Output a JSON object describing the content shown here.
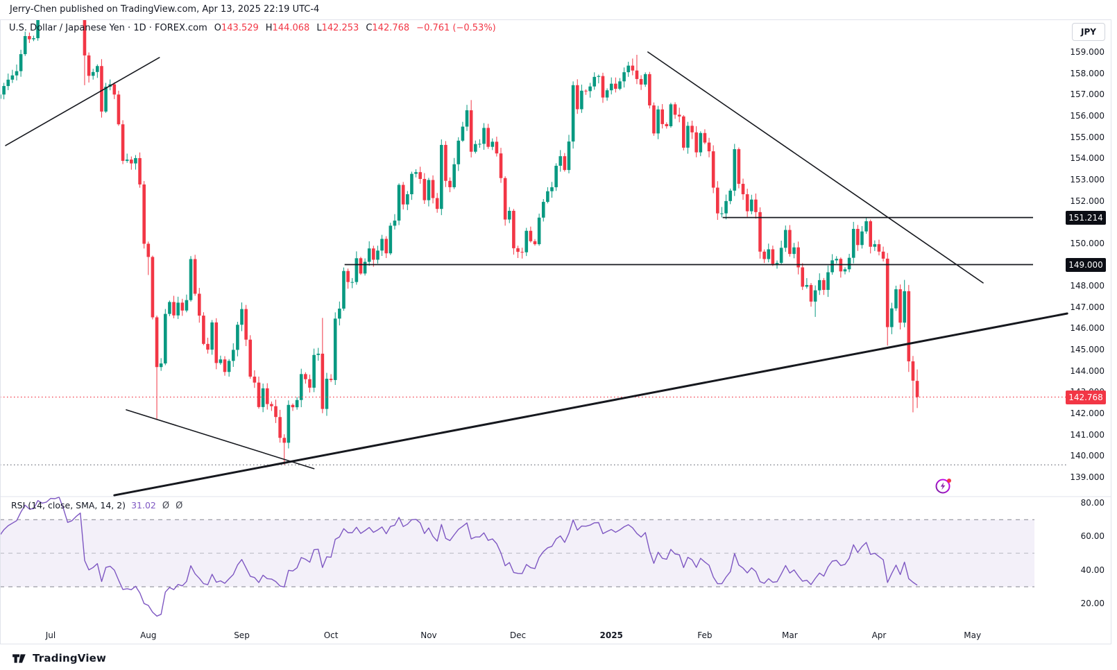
{
  "publish_bar": {
    "text": "Jerry-Chen published on TradingView.com, Apr 13, 2025 22:19 UTC-4"
  },
  "legend": {
    "title": "U.S. Dollar / Japanese Yen · 1D · FOREX.com",
    "ohlc": [
      {
        "label": "O",
        "value": "143.529"
      },
      {
        "label": "H",
        "value": "144.068"
      },
      {
        "label": "L",
        "value": "142.253"
      },
      {
        "label": "C",
        "value": "142.768"
      }
    ],
    "change": "−0.761 (−0.53%)"
  },
  "price_axis": {
    "currency_button": "JPY",
    "ticks": [
      "159.000",
      "158.000",
      "157.000",
      "156.000",
      "155.000",
      "154.000",
      "153.000",
      "152.000",
      "151.000",
      "150.000",
      "149.000",
      "148.000",
      "147.000",
      "146.000",
      "145.000",
      "144.000",
      "143.000",
      "142.000",
      "141.000",
      "140.000",
      "139.000"
    ],
    "badges": [
      {
        "value": "151.214",
        "price": 151.214,
        "bg": "#0c0e15"
      },
      {
        "value": "149.000",
        "price": 149.0,
        "bg": "#0c0e15"
      },
      {
        "value": "142.768",
        "price": 142.768,
        "bg": "#f23645"
      }
    ]
  },
  "rsi_panel": {
    "legend_title": "RSI (14, close, SMA, 14, 2)",
    "value": "31.02",
    "empty_values": [
      "Ø",
      "Ø"
    ],
    "ticks": [
      "80.00",
      "60.00",
      "40.00",
      "20.00"
    ],
    "tick_values": [
      80,
      60,
      40,
      20
    ],
    "upper_band": 70,
    "middle_band": 50,
    "lower_band": 30,
    "line_color": "#7e57c2",
    "band_fill": "rgba(126,87,194,0.09)"
  },
  "time_axis": {
    "labels": [
      {
        "text": "Jul",
        "index": 12,
        "bold": false
      },
      {
        "text": "Aug",
        "index": 35,
        "bold": false
      },
      {
        "text": "Sep",
        "index": 57,
        "bold": false
      },
      {
        "text": "Oct",
        "index": 78,
        "bold": false
      },
      {
        "text": "Nov",
        "index": 101,
        "bold": false
      },
      {
        "text": "Dec",
        "index": 122,
        "bold": false
      },
      {
        "text": "2025",
        "index": 144,
        "bold": true
      },
      {
        "text": "Feb",
        "index": 166,
        "bold": false
      },
      {
        "text": "Mar",
        "index": 186,
        "bold": false
      },
      {
        "text": "Apr",
        "index": 207,
        "bold": false
      },
      {
        "text": "May",
        "index": 229,
        "bold": false
      }
    ]
  },
  "footer": {
    "brand": "TradingView"
  },
  "chart_data": {
    "type": "candlestick",
    "title": "U.S. Dollar / Japanese Yen",
    "timeframe": "1D",
    "source": "FOREX.com",
    "ylabel": "JPY",
    "ylim": [
      138.5,
      160.6
    ],
    "colors": {
      "up": "#089981",
      "down": "#f23645",
      "drawing": "#16181e"
    },
    "first_open": 156.8,
    "pre_closes": [
      156.0,
      155.6,
      155.2,
      154.9,
      155.3,
      155.9,
      156.3,
      156.6,
      157.0,
      156.8,
      156.6,
      156.9,
      157.2,
      157.3,
      156.9
    ],
    "closes": [
      157.0,
      157.4,
      157.7,
      157.9,
      158.1,
      158.9,
      159.75,
      159.6,
      159.65,
      160.8,
      160.7,
      160.85,
      161.45,
      161.44,
      161.69,
      161.3,
      160.75,
      160.9,
      161.3,
      161.66,
      158.84,
      157.88,
      158.06,
      158.34,
      156.2,
      157.37,
      157.48,
      157.0,
      155.6,
      153.88,
      153.94,
      153.76,
      154.01,
      152.77,
      149.98,
      149.36,
      146.52,
      144.18,
      144.35,
      146.68,
      147.24,
      146.61,
      147.21,
      146.84,
      147.33,
      149.26,
      147.63,
      146.6,
      145.27,
      145.0,
      146.28,
      144.37,
      144.54,
      143.95,
      144.47,
      144.99,
      146.17,
      146.91,
      145.47,
      143.73,
      143.45,
      142.3,
      143.18,
      142.44,
      142.34,
      141.83,
      140.85,
      140.62,
      142.4,
      142.29,
      142.63,
      143.85,
      143.61,
      143.21,
      144.75,
      144.81,
      142.21,
      143.63,
      143.57,
      146.46,
      146.93,
      148.7,
      148.18,
      148.18,
      149.3,
      148.58,
      149.13,
      149.76,
      149.23,
      149.66,
      150.21,
      149.53,
      150.83,
      151.07,
      152.75,
      151.83,
      152.31,
      153.27,
      153.35,
      153.03,
      152.03,
      152.98,
      152.13,
      151.62,
      154.63,
      152.94,
      152.64,
      153.72,
      154.83,
      155.49,
      156.26,
      154.31,
      154.67,
      154.68,
      155.43,
      154.54,
      154.78,
      154.23,
      153.07,
      151.12,
      151.53,
      149.77,
      149.6,
      149.58,
      150.59,
      150.1,
      149.96,
      151.21,
      151.95,
      152.45,
      152.64,
      153.65,
      154.1,
      153.45,
      154.79,
      157.44,
      156.31,
      157.18,
      157.16,
      157.38,
      157.83,
      157.87,
      156.86,
      157.2,
      157.51,
      157.27,
      157.62,
      158.05,
      158.36,
      158.13,
      157.73,
      157.47,
      157.96,
      156.49,
      155.17,
      156.3,
      155.61,
      155.51,
      156.54,
      156.05,
      155.97,
      154.5,
      155.53,
      155.22,
      154.28,
      155.19,
      154.74,
      154.33,
      152.62,
      151.41,
      151.41,
      151.99,
      152.48,
      154.43,
      152.8,
      152.31,
      151.51,
      152.06,
      151.47,
      149.61,
      149.26,
      149.72,
      149.03,
      149.08,
      149.79,
      150.63,
      149.5,
      149.81,
      148.87,
      147.96,
      148.04,
      147.26,
      147.79,
      148.27,
      147.81,
      148.64,
      149.2,
      149.27,
      148.68,
      148.78,
      149.32,
      150.68,
      149.92,
      150.56,
      151.04,
      149.84,
      149.96,
      149.61,
      149.28,
      146.06,
      146.94,
      147.84,
      146.27,
      147.75,
      144.45,
      143.54,
      142.768
    ],
    "wick_overrides": {
      "14": {
        "h": 161.95
      },
      "19": {
        "h": 161.81
      },
      "20": {
        "l": 157.44
      },
      "35": {
        "l": 148.51
      },
      "36": {
        "l": 146.42
      },
      "37": {
        "l": 141.7
      },
      "45": {
        "h": 149.4
      },
      "67": {
        "l": 139.58
      },
      "76": {
        "h": 146.49
      },
      "111": {
        "h": 156.74
      },
      "121": {
        "l": 149.47
      },
      "150": {
        "h": 158.87
      },
      "192": {
        "l": 146.54
      },
      "204": {
        "h": 151.21
      },
      "209": {
        "l": 145.19
      },
      "213": {
        "h": 148.28
      },
      "214": {
        "l": 143.95
      },
      "215": {
        "l": 142.05
      },
      "216": {
        "o": 143.529,
        "h": 144.068,
        "l": 142.253,
        "c": 142.768
      }
    },
    "horizontal_rays": [
      {
        "price": 151.214,
        "from_index": 170.2
      },
      {
        "price": 149.0,
        "from_index": 81.2
      }
    ],
    "price_line": {
      "price": 142.768,
      "color": "#f23645"
    },
    "dotted_level": {
      "price": 139.58,
      "color": "#6f727c"
    },
    "trendlines": [
      {
        "i1": 152.6,
        "p1": 159.0,
        "i2": 231.5,
        "p2": 148.14,
        "w": 1.6
      },
      {
        "i1": 27.0,
        "p1": 138.15,
        "i2": 251.3,
        "p2": 146.7,
        "w": 3.0
      },
      {
        "i1": 1.4,
        "p1": 154.6,
        "i2": 37.6,
        "p2": 158.74,
        "w": 1.6
      },
      {
        "i1": 29.8,
        "p1": 142.17,
        "i2": 74.0,
        "p2": 139.4,
        "w": 1.6
      }
    ],
    "rsi_last_value": 31.02
  }
}
